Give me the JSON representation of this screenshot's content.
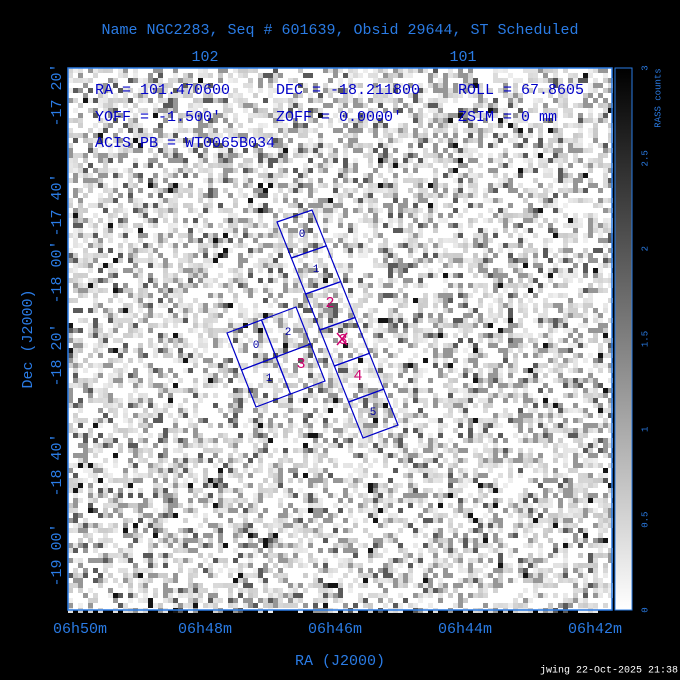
{
  "header": {
    "title": "Name NGC2283, Seq # 601639, Obsid 29644, ST Scheduled"
  },
  "axes": {
    "top_ticks": [
      "102",
      "101"
    ],
    "bottom_ticks": [
      "06h50m",
      "06h48m",
      "06h46m",
      "06h44m",
      "06h42m"
    ],
    "left_ticks": [
      "-17 20'",
      "-17 40'",
      "-18 00'",
      "-18 20'",
      "-18 40'",
      "-19 00'"
    ],
    "x_label": "RA (J2000)",
    "y_label": "Dec (J2000)"
  },
  "info": {
    "line1": [
      "RA = 101.470600",
      "DEC = -18.211800",
      "ROLL = 67.8605"
    ],
    "line2": [
      "YOFF = -1.500'",
      "ZOFF = 0.0000'",
      "ZSIM = 0 mm"
    ],
    "line3": "ACIS PB = WT0065B034"
  },
  "chips": {
    "i_array": [
      "0",
      "2",
      "1",
      "3"
    ],
    "s_array": [
      "0",
      "1",
      "2",
      "3",
      "4",
      "5"
    ]
  },
  "colorbar": {
    "label": "RASS counts",
    "ticks": [
      "0",
      "0.5",
      "1",
      "1.5",
      "2",
      "2.5",
      "3"
    ]
  },
  "footer": "jwing 22-Oct-2025 21:38"
}
